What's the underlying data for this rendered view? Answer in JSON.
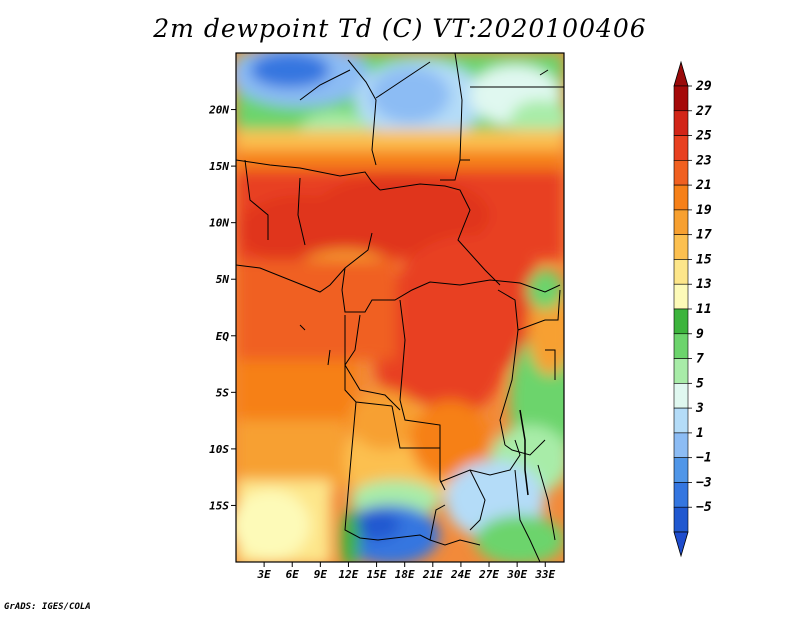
{
  "title": "2m dewpoint Td (C) VT:2020100406",
  "footer": "GrADS: IGES/COLA",
  "map": {
    "lon_range": [
      0,
      35
    ],
    "lat_range": [
      -20,
      25
    ],
    "lat_labels": [
      "20N",
      "15N",
      "10N",
      "5N",
      "EQ",
      "5S",
      "10S",
      "15S"
    ],
    "lat_values": [
      20,
      15,
      10,
      5,
      0,
      -5,
      -10,
      -15
    ],
    "lon_labels": [
      "3E",
      "6E",
      "9E",
      "12E",
      "15E",
      "18E",
      "21E",
      "24E",
      "27E",
      "30E",
      "33E"
    ],
    "lon_values": [
      3,
      6,
      9,
      12,
      15,
      18,
      21,
      24,
      27,
      30,
      33
    ]
  },
  "colorbar": {
    "labels": [
      "29",
      "27",
      "25",
      "23",
      "21",
      "19",
      "17",
      "15",
      "13",
      "11",
      "9",
      "7",
      "5",
      "3",
      "1",
      "−1",
      "−3",
      "−5"
    ],
    "colors": [
      "#a50a0a",
      "#d22518",
      "#e84020",
      "#f06020",
      "#f68018",
      "#f7a030",
      "#fcc050",
      "#fde68a",
      "#fdfab8",
      "#3cb43c",
      "#6cd46c",
      "#a8eca8",
      "#e0f8f0",
      "#b4dcf8",
      "#8cbcf4",
      "#5096e8",
      "#3476e0",
      "#2058d0"
    ],
    "max_arrow_color": "#9a0a0a",
    "min_arrow_color": "#1e4ccd"
  }
}
